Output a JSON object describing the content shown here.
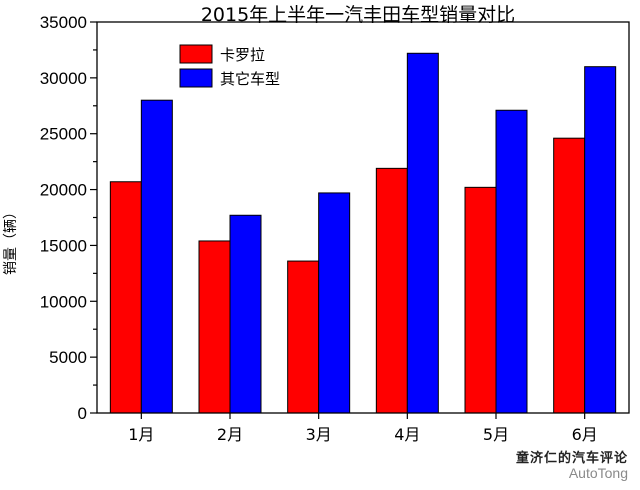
{
  "chart_data": {
    "type": "bar",
    "title": "2015年上半年一汽丰田车型销量对比",
    "xlabel": "",
    "ylabel": "销量（辆）",
    "categories": [
      "1月",
      "2月",
      "3月",
      "4月",
      "5月",
      "6月"
    ],
    "series": [
      {
        "name": "卡罗拉",
        "color": "#ff0000",
        "values": [
          20700,
          15400,
          13600,
          21900,
          20200,
          24600
        ]
      },
      {
        "name": "其它车型",
        "color": "#0000ff",
        "values": [
          28000,
          17700,
          19700,
          32200,
          27100,
          31000
        ]
      }
    ],
    "ylim": [
      0,
      35000
    ],
    "yticks": [
      "0",
      "5000",
      "10000",
      "15000",
      "20000",
      "25000",
      "30000",
      "35000"
    ],
    "grid": false,
    "legend": "top-left"
  },
  "watermark": {
    "text_cn": "童济仁的汽车评论",
    "text_en": "AutoTong"
  }
}
